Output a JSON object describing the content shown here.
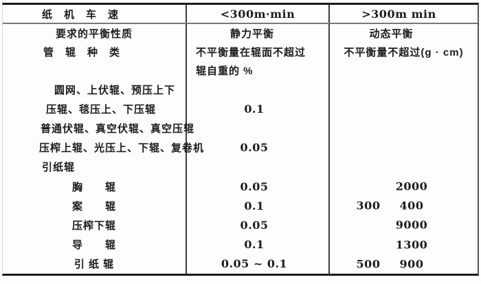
{
  "page": {
    "background": "#fdfdfb",
    "ink": "#1c1c1c",
    "rule_dark": "#1a1a1a",
    "rule_gray": "#777777"
  },
  "table": {
    "header": {
      "col1": "纸　机　车　速",
      "col2": "<300m·min",
      "col3": ">300m min"
    },
    "balance_row": {
      "col1": "要求的平衡性质",
      "col2": "静力平衡",
      "col3": "动态平衡"
    },
    "tolerance_row": {
      "col1": "管　辊　种　类",
      "col2_line1": "不平衡量在辊面不超过",
      "col2_line2": "辊自重的 %",
      "col3": "不平衡量不超过(g · cm)"
    },
    "rows": [
      {
        "label": "圆网、上伏辊、预压上下",
        "mid": "",
        "r1": "",
        "r2": ""
      },
      {
        "label": "压辊、毯压上、下压辊",
        "mid": "0.1",
        "r1": "",
        "r2": ""
      },
      {
        "label": "普通伏辊、真空伏辊、真空压辊",
        "mid": "",
        "r1": "",
        "r2": ""
      },
      {
        "label": "压榨上辊、光压上、下辊、复卷机",
        "mid": "0.05",
        "r1": "",
        "r2": ""
      },
      {
        "label": "引纸辊",
        "mid": "",
        "r1": "",
        "r2": ""
      },
      {
        "label": "胸　　辊",
        "mid": "0.05",
        "r1": "",
        "r2": "2000"
      },
      {
        "label": "案　　辊",
        "mid": "0.1",
        "r1": "300",
        "r2": "400"
      },
      {
        "label": "压榨下辊",
        "mid": "0.05",
        "r1": "",
        "r2": "9000"
      },
      {
        "label": "导　　辊",
        "mid": "0.1",
        "r1": "",
        "r2": "1300"
      },
      {
        "label": "引 纸 辊",
        "mid": "0.05 ~ 0.1",
        "r1": "500",
        "r2": "900"
      }
    ]
  }
}
